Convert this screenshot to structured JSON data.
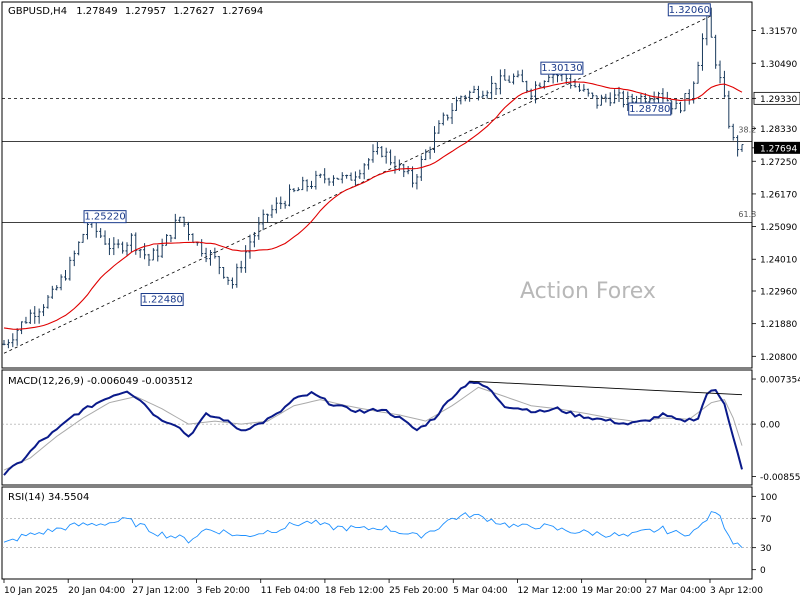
{
  "chart_data": [
    {
      "type": "candlestick",
      "header": {
        "symbol_tf": "GBPUSD,H4",
        "open": "1.27849",
        "high": "1.27957",
        "low": "1.27627",
        "close": "1.27694"
      },
      "y_ticks": [
        "1.31570",
        "1.30490",
        "1.29330",
        "1.28330",
        "1.27694",
        "1.27250",
        "1.26170",
        "1.25090",
        "1.24010",
        "1.22960",
        "1.21880",
        "1.20800"
      ],
      "ylim": [
        1.2048,
        1.3245
      ],
      "watermark": "Action Forex",
      "ma_color": "#e00000",
      "bar_color": "#1a3a5c",
      "price_path": [
        [
          0,
          1.212
        ],
        [
          6,
          1.222
        ],
        [
          11,
          1.228
        ],
        [
          15,
          1.238
        ],
        [
          19,
          1.252
        ],
        [
          22,
          1.248
        ],
        [
          25,
          1.243
        ],
        [
          29,
          1.247
        ],
        [
          33,
          1.24
        ],
        [
          36,
          1.244
        ],
        [
          40,
          1.254
        ],
        [
          44,
          1.245
        ],
        [
          48,
          1.24
        ],
        [
          52,
          1.232
        ],
        [
          56,
          1.246
        ],
        [
          60,
          1.255
        ],
        [
          64,
          1.26
        ],
        [
          68,
          1.264
        ],
        [
          71,
          1.266
        ],
        [
          75,
          1.268
        ],
        [
          78,
          1.266
        ],
        [
          82,
          1.272
        ],
        [
          86,
          1.276
        ],
        [
          90,
          1.27
        ],
        [
          93,
          1.266
        ],
        [
          97,
          1.278
        ],
        [
          100,
          1.286
        ],
        [
          104,
          1.294
        ],
        [
          108,
          1.296
        ],
        [
          112,
          1.298
        ],
        [
          116,
          1.3
        ],
        [
          120,
          1.296
        ],
        [
          124,
          1.302
        ],
        [
          128,
          1.3
        ],
        [
          131,
          1.296
        ],
        [
          135,
          1.292
        ],
        [
          138,
          1.294
        ],
        [
          142,
          1.292
        ],
        [
          146,
          1.294
        ],
        [
          149,
          1.296
        ],
        [
          153,
          1.29
        ],
        [
          156,
          1.294
        ],
        [
          158,
          1.306
        ],
        [
          160,
          1.3195
        ],
        [
          162,
          1.306
        ],
        [
          164,
          1.292
        ],
        [
          166,
          1.279
        ],
        [
          168,
          1.276
        ]
      ],
      "levels": [
        {
          "type": "horizontal",
          "value": 1.2933,
          "style": "dashed",
          "label": "1.29330"
        },
        {
          "type": "horizontal",
          "value": 1.279,
          "style": "solid"
        },
        {
          "type": "horizontal",
          "value": 1.2522,
          "style": "solid"
        }
      ],
      "trendline": {
        "style": "dashed",
        "from": [
          0,
          1.209
        ],
        "to": [
          161,
          1.3206
        ]
      },
      "fib_labels": [
        {
          "text": "38.2",
          "x": 169,
          "y": 1.281
        },
        {
          "text": "61.8",
          "x": 169,
          "y": 1.253
        }
      ],
      "annotations": [
        {
          "text": "1.32060",
          "x": 156,
          "y": 1.3206
        },
        {
          "text": "1.30130",
          "x": 127,
          "y": 1.3013
        },
        {
          "text": "1.28780",
          "x": 147,
          "y": 1.2878
        },
        {
          "text": "1.25220",
          "x": 23,
          "y": 1.2522
        },
        {
          "text": "1.22480",
          "x": 36,
          "y": 1.2248
        }
      ],
      "current_price": {
        "value": 1.27694,
        "label": "1.27694"
      }
    },
    {
      "type": "line",
      "title": "MACD(12,26,9) -0.006049 -0.003512",
      "y_ticks": [
        "0.007354",
        "0.00",
        "-0.008558"
      ],
      "ylim": [
        -0.0096,
        0.0085
      ],
      "series": [
        {
          "color": "#0a1a8a",
          "values": [
            [
              0,
              -0.0082
            ],
            [
              4,
              -0.006
            ],
            [
              8,
              -0.003
            ],
            [
              12,
              -0.001
            ],
            [
              16,
              0.0015
            ],
            [
              20,
              0.003
            ],
            [
              24,
              0.0045
            ],
            [
              28,
              0.0055
            ],
            [
              31,
              0.004
            ],
            [
              35,
              0.001
            ],
            [
              39,
              0.0
            ],
            [
              42,
              -0.002
            ],
            [
              46,
              0.0015
            ],
            [
              50,
              0.0008
            ],
            [
              54,
              -0.001
            ],
            [
              58,
              0.0
            ],
            [
              62,
              0.0015
            ],
            [
              66,
              0.004
            ],
            [
              70,
              0.005
            ],
            [
              74,
              0.0035
            ],
            [
              78,
              0.0025
            ],
            [
              82,
              0.002
            ],
            [
              86,
              0.0025
            ],
            [
              90,
              0.001
            ],
            [
              94,
              -0.001
            ],
            [
              98,
              0.001
            ],
            [
              102,
              0.0045
            ],
            [
              106,
              0.007
            ],
            [
              110,
              0.006
            ],
            [
              114,
              0.003
            ],
            [
              118,
              0.0025
            ],
            [
              122,
              0.002
            ],
            [
              126,
              0.0025
            ],
            [
              130,
              0.0015
            ],
            [
              134,
              0.001
            ],
            [
              138,
              0.0005
            ],
            [
              142,
              0.0
            ],
            [
              146,
              0.0005
            ],
            [
              150,
              0.0015
            ],
            [
              154,
              0.0005
            ],
            [
              158,
              0.001
            ],
            [
              160,
              0.005
            ],
            [
              162,
              0.0055
            ],
            [
              164,
              0.0035
            ],
            [
              166,
              -0.002
            ],
            [
              168,
              -0.0075
            ]
          ]
        },
        {
          "color": "#aaaaaa",
          "values": [
            [
              0,
              -0.0075
            ],
            [
              6,
              -0.0055
            ],
            [
              12,
              -0.002
            ],
            [
              18,
              0.001
            ],
            [
              24,
              0.0035
            ],
            [
              30,
              0.0045
            ],
            [
              36,
              0.0025
            ],
            [
              42,
              0.0
            ],
            [
              48,
              0.0005
            ],
            [
              54,
              0.0
            ],
            [
              60,
              0.0005
            ],
            [
              66,
              0.003
            ],
            [
              72,
              0.004
            ],
            [
              78,
              0.003
            ],
            [
              84,
              0.0022
            ],
            [
              90,
              0.0015
            ],
            [
              96,
              0.0005
            ],
            [
              102,
              0.003
            ],
            [
              108,
              0.006
            ],
            [
              114,
              0.0045
            ],
            [
              120,
              0.003
            ],
            [
              126,
              0.0025
            ],
            [
              132,
              0.0018
            ],
            [
              138,
              0.001
            ],
            [
              144,
              0.0004
            ],
            [
              150,
              0.001
            ],
            [
              156,
              0.0008
            ],
            [
              161,
              0.0035
            ],
            [
              164,
              0.004
            ],
            [
              166,
              0.001
            ],
            [
              168,
              -0.0035
            ]
          ]
        }
      ],
      "divergence_line": {
        "style": "solid",
        "from": [
          106,
          0.007
        ],
        "to": [
          168,
          0.0048
        ]
      }
    },
    {
      "type": "line",
      "title": "RSI(14) 34.5504",
      "y_ticks": [
        "100",
        "70",
        "30",
        "0"
      ],
      "ylim": [
        -10,
        110
      ],
      "levels": [
        70,
        30
      ],
      "series": [
        {
          "color": "#1e90ff",
          "values": [
            [
              0,
              35
            ],
            [
              4,
              45
            ],
            [
              8,
              50
            ],
            [
              12,
              55
            ],
            [
              16,
              60
            ],
            [
              20,
              62
            ],
            [
              24,
              64
            ],
            [
              28,
              68
            ],
            [
              31,
              60
            ],
            [
              35,
              50
            ],
            [
              39,
              45
            ],
            [
              42,
              40
            ],
            [
              46,
              55
            ],
            [
              50,
              52
            ],
            [
              54,
              45
            ],
            [
              58,
              50
            ],
            [
              62,
              55
            ],
            [
              66,
              62
            ],
            [
              70,
              65
            ],
            [
              74,
              58
            ],
            [
              78,
              57
            ],
            [
              82,
              55
            ],
            [
              86,
              58
            ],
            [
              90,
              52
            ],
            [
              94,
              45
            ],
            [
              98,
              55
            ],
            [
              102,
              70
            ],
            [
              106,
              75
            ],
            [
              110,
              70
            ],
            [
              114,
              62
            ],
            [
              118,
              58
            ],
            [
              122,
              60
            ],
            [
              126,
              55
            ],
            [
              130,
              52
            ],
            [
              134,
              50
            ],
            [
              138,
              48
            ],
            [
              142,
              45
            ],
            [
              146,
              52
            ],
            [
              150,
              55
            ],
            [
              154,
              48
            ],
            [
              158,
              55
            ],
            [
              160,
              70
            ],
            [
              162,
              80
            ],
            [
              164,
              60
            ],
            [
              166,
              38
            ],
            [
              168,
              34.55
            ]
          ]
        }
      ]
    }
  ],
  "x_axis": {
    "labels": [
      "10 Jan 2025",
      "20 Jan 04:00",
      "27 Jan 12:00",
      "3 Feb 20:00",
      "11 Feb 04:00",
      "18 Feb 12:00",
      "25 Feb 20:00",
      "5 Mar 04:00",
      "12 Mar 12:00",
      "19 Mar 20:00",
      "27 Mar 04:00",
      "3 Apr 12:00"
    ]
  }
}
